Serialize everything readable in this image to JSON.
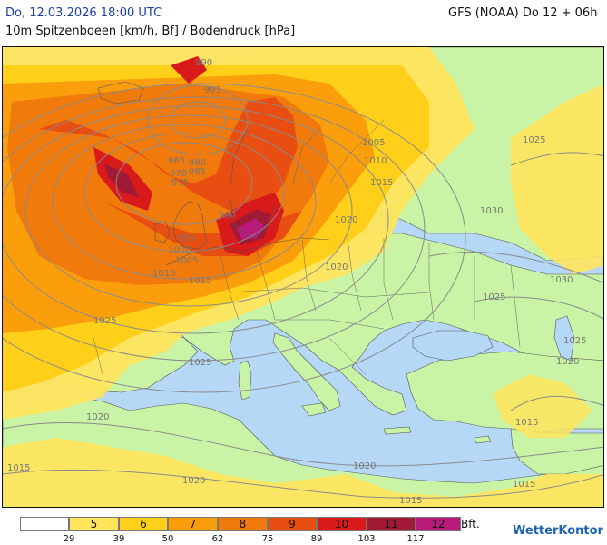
{
  "header": {
    "datetime": "Do, 12.03.2026 18:00 UTC",
    "model": "GFS (NOAA) Do 12 + 06h",
    "subtitle": "10m Spitzenboeen [km/h, Bf] / Bodendruck [hPa]"
  },
  "isobar_labels": [
    "990",
    "995",
    "965",
    "970",
    "975",
    "980",
    "985",
    "990",
    "995",
    "1000",
    "1005",
    "1010",
    "1025",
    "1005",
    "1010",
    "1015",
    "1020",
    "1025",
    "1030",
    "1025",
    "1030",
    "1025",
    "1020",
    "1015",
    "1020",
    "1015",
    "1020",
    "1015",
    "1020",
    "1015",
    "1015",
    "1020",
    "1025"
  ],
  "legend": {
    "unit_label": "Bft.",
    "bft_classes": [
      "",
      "5",
      "6",
      "7",
      "8",
      "9",
      "10",
      "11",
      "12"
    ],
    "kmh_ticks": [
      "29",
      "39",
      "50",
      "62",
      "75",
      "89",
      "103",
      "117"
    ],
    "colors": [
      "#ffffff",
      "#ffe45c",
      "#ffcf1a",
      "#fb9e0c",
      "#f07a0c",
      "#e84e12",
      "#d81a1a",
      "#a01a36",
      "#b81b7c"
    ]
  },
  "brand": {
    "name": "WetterKontor",
    "mark": "≈"
  },
  "map_colors": {
    "sea": "#b5d8f6",
    "land_calm": "#c9f4a6",
    "bft5": "#ffe45c",
    "bft6": "#ffcf1a",
    "bft7": "#fb9e0c",
    "bft8": "#f07a0c",
    "bft9": "#e84e12",
    "bft10": "#d81a1a",
    "bft11": "#a01a36",
    "bft12": "#b81b7c"
  }
}
